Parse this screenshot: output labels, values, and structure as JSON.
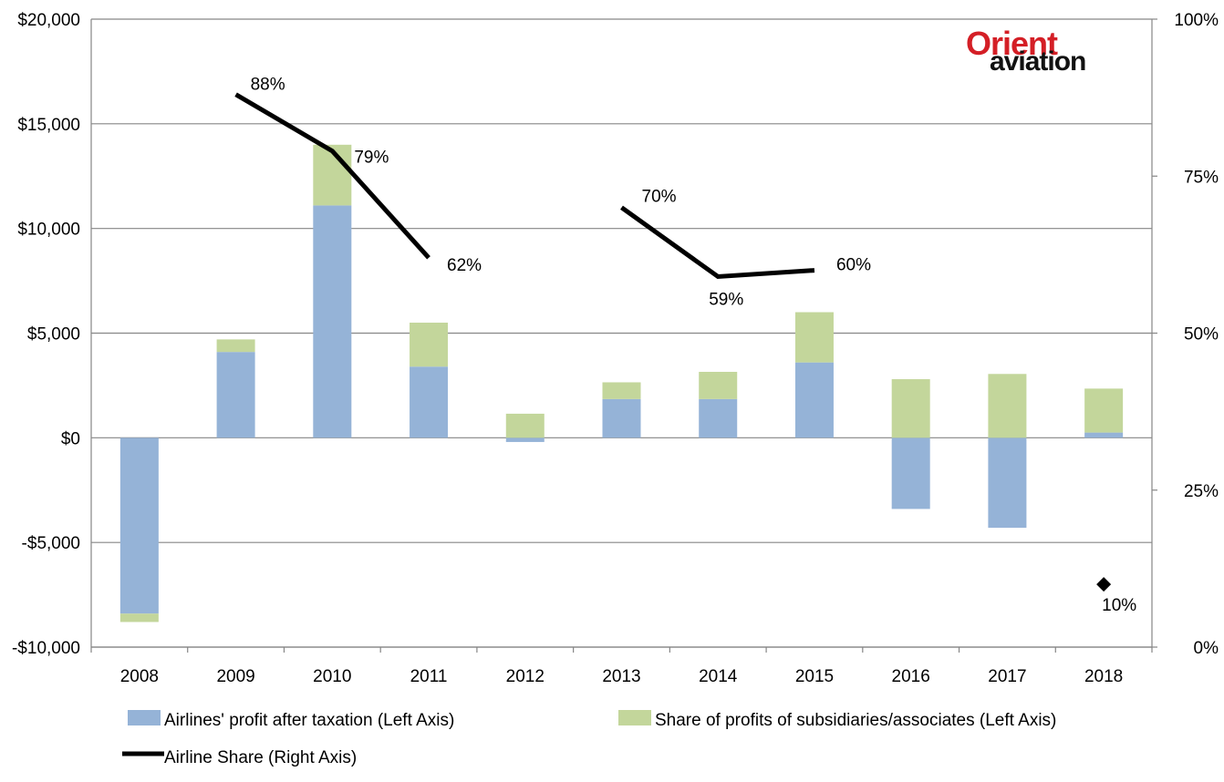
{
  "logo": {
    "top": "Orient",
    "bottom": "aviation"
  },
  "chart_data": {
    "type": "bar",
    "stacked": true,
    "categories": [
      "2008",
      "2009",
      "2010",
      "2011",
      "2012",
      "2013",
      "2014",
      "2015",
      "2016",
      "2017",
      "2018"
    ],
    "left_axis": {
      "ylim": [
        -10000,
        20000
      ],
      "ticks": [
        -10000,
        -5000,
        0,
        5000,
        10000,
        15000,
        20000
      ],
      "tick_labels": [
        "-$10,000",
        "-$5,000",
        "$0",
        "$5,000",
        "$10,000",
        "$15,000",
        "$20,000"
      ]
    },
    "right_axis": {
      "ylim": [
        0,
        100
      ],
      "ticks": [
        0,
        25,
        50,
        75,
        100
      ],
      "tick_labels": [
        "0%",
        "25%",
        "50%",
        "75%",
        "100%"
      ]
    },
    "series": [
      {
        "name": "Airlines' profit after taxation (Left Axis)",
        "axis": "left",
        "kind": "bar",
        "color": "#95b3d7",
        "values": [
          -8400,
          4100,
          11100,
          3400,
          -200,
          1850,
          1850,
          3600,
          -3400,
          -4300,
          250
        ]
      },
      {
        "name": "Share of profits of subsidiaries/associates (Left Axis)",
        "axis": "left",
        "kind": "bar",
        "color": "#c3d69b",
        "values": [
          -400,
          600,
          2900,
          2100,
          1150,
          800,
          1300,
          2400,
          2800,
          3050,
          2100
        ]
      },
      {
        "name": "Airline Share (Right Axis)",
        "axis": "right",
        "kind": "line",
        "color": "#000000",
        "values": [
          null,
          88,
          79,
          62,
          null,
          70,
          59,
          60,
          null,
          null,
          10
        ],
        "labels": [
          null,
          "88%",
          "79%",
          "62%",
          null,
          "70%",
          "59%",
          "60%",
          null,
          null,
          "10%"
        ]
      }
    ],
    "legend_position": "bottom",
    "grid": true
  }
}
